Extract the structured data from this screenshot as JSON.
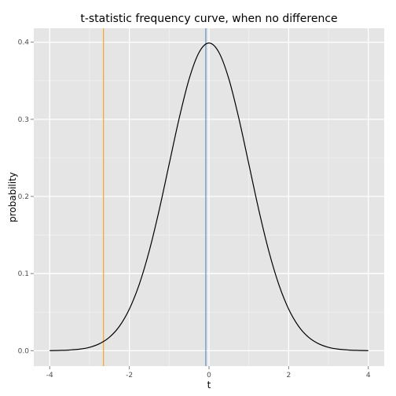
{
  "chart_data": {
    "type": "line",
    "title": "t-statistic frequency curve, when no difference",
    "xlabel": "t",
    "ylabel": "probability",
    "xlim": [
      -4.4,
      4.4
    ],
    "ylim": [
      -0.02,
      0.418
    ],
    "x_ticks": [
      -4,
      -2,
      0,
      2,
      4
    ],
    "x_tick_labels": [
      "-4",
      "-2",
      "0",
      "2",
      "4"
    ],
    "y_ticks": [
      0.0,
      0.1,
      0.2,
      0.3,
      0.4
    ],
    "y_tick_labels": [
      "0.0",
      "0.1",
      "0.2",
      "0.3",
      "0.4"
    ],
    "grid": true,
    "series": [
      {
        "color": "#000000",
        "x": [
          -4.0,
          -3.75,
          -3.5,
          -3.25,
          -3.0,
          -2.75,
          -2.5,
          -2.25,
          -2.0,
          -1.75,
          -1.5,
          -1.25,
          -1.0,
          -0.75,
          -0.5,
          -0.25,
          0.0,
          0.25,
          0.5,
          0.75,
          1.0,
          1.25,
          1.5,
          1.75,
          2.0,
          2.25,
          2.5,
          2.75,
          3.0,
          3.25,
          3.5,
          3.75,
          4.0
        ],
        "y": [
          0.0001,
          0.0004,
          0.0009,
          0.002,
          0.0044,
          0.0091,
          0.0175,
          0.0317,
          0.054,
          0.0863,
          0.1295,
          0.1826,
          0.242,
          0.3011,
          0.3521,
          0.3867,
          0.3989,
          0.3867,
          0.3521,
          0.3011,
          0.242,
          0.1826,
          0.1295,
          0.0863,
          0.054,
          0.0317,
          0.0175,
          0.0091,
          0.0044,
          0.002,
          0.0009,
          0.0004,
          0.0001
        ]
      }
    ],
    "vlines": [
      {
        "x": -2.65,
        "color": "#f5a623"
      },
      {
        "x": -0.08,
        "color": "#5b8fbf"
      }
    ],
    "colors": {
      "panel": "#e5e5e5",
      "grid_major": "#ffffff",
      "grid_minor": "#f2f2f2"
    }
  }
}
